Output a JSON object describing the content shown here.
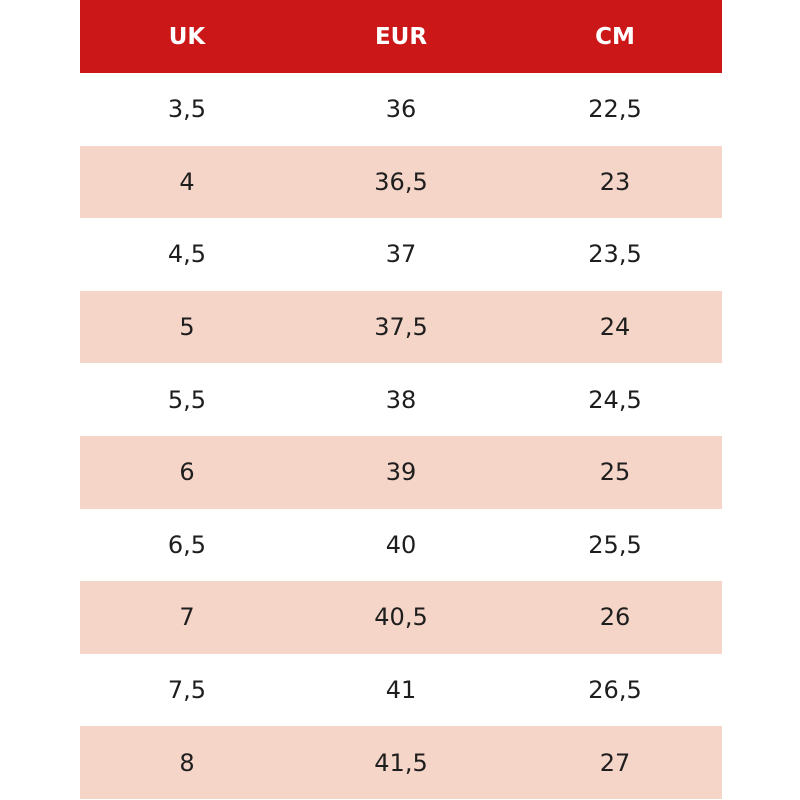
{
  "table": {
    "header": [
      "UK",
      "EUR",
      "CM"
    ],
    "rows": [
      [
        "3,5",
        "36",
        "22,5"
      ],
      [
        "4",
        "36,5",
        "23"
      ],
      [
        "4,5",
        "37",
        "23,5"
      ],
      [
        "5",
        "37,5",
        "24"
      ],
      [
        "5,5",
        "38",
        "24,5"
      ],
      [
        "6",
        "39",
        "25"
      ],
      [
        "6,5",
        "40",
        "25,5"
      ],
      [
        "7",
        "40,5",
        "26"
      ],
      [
        "7,5",
        "41",
        "26,5"
      ],
      [
        "8",
        "41,5",
        "27"
      ]
    ]
  }
}
